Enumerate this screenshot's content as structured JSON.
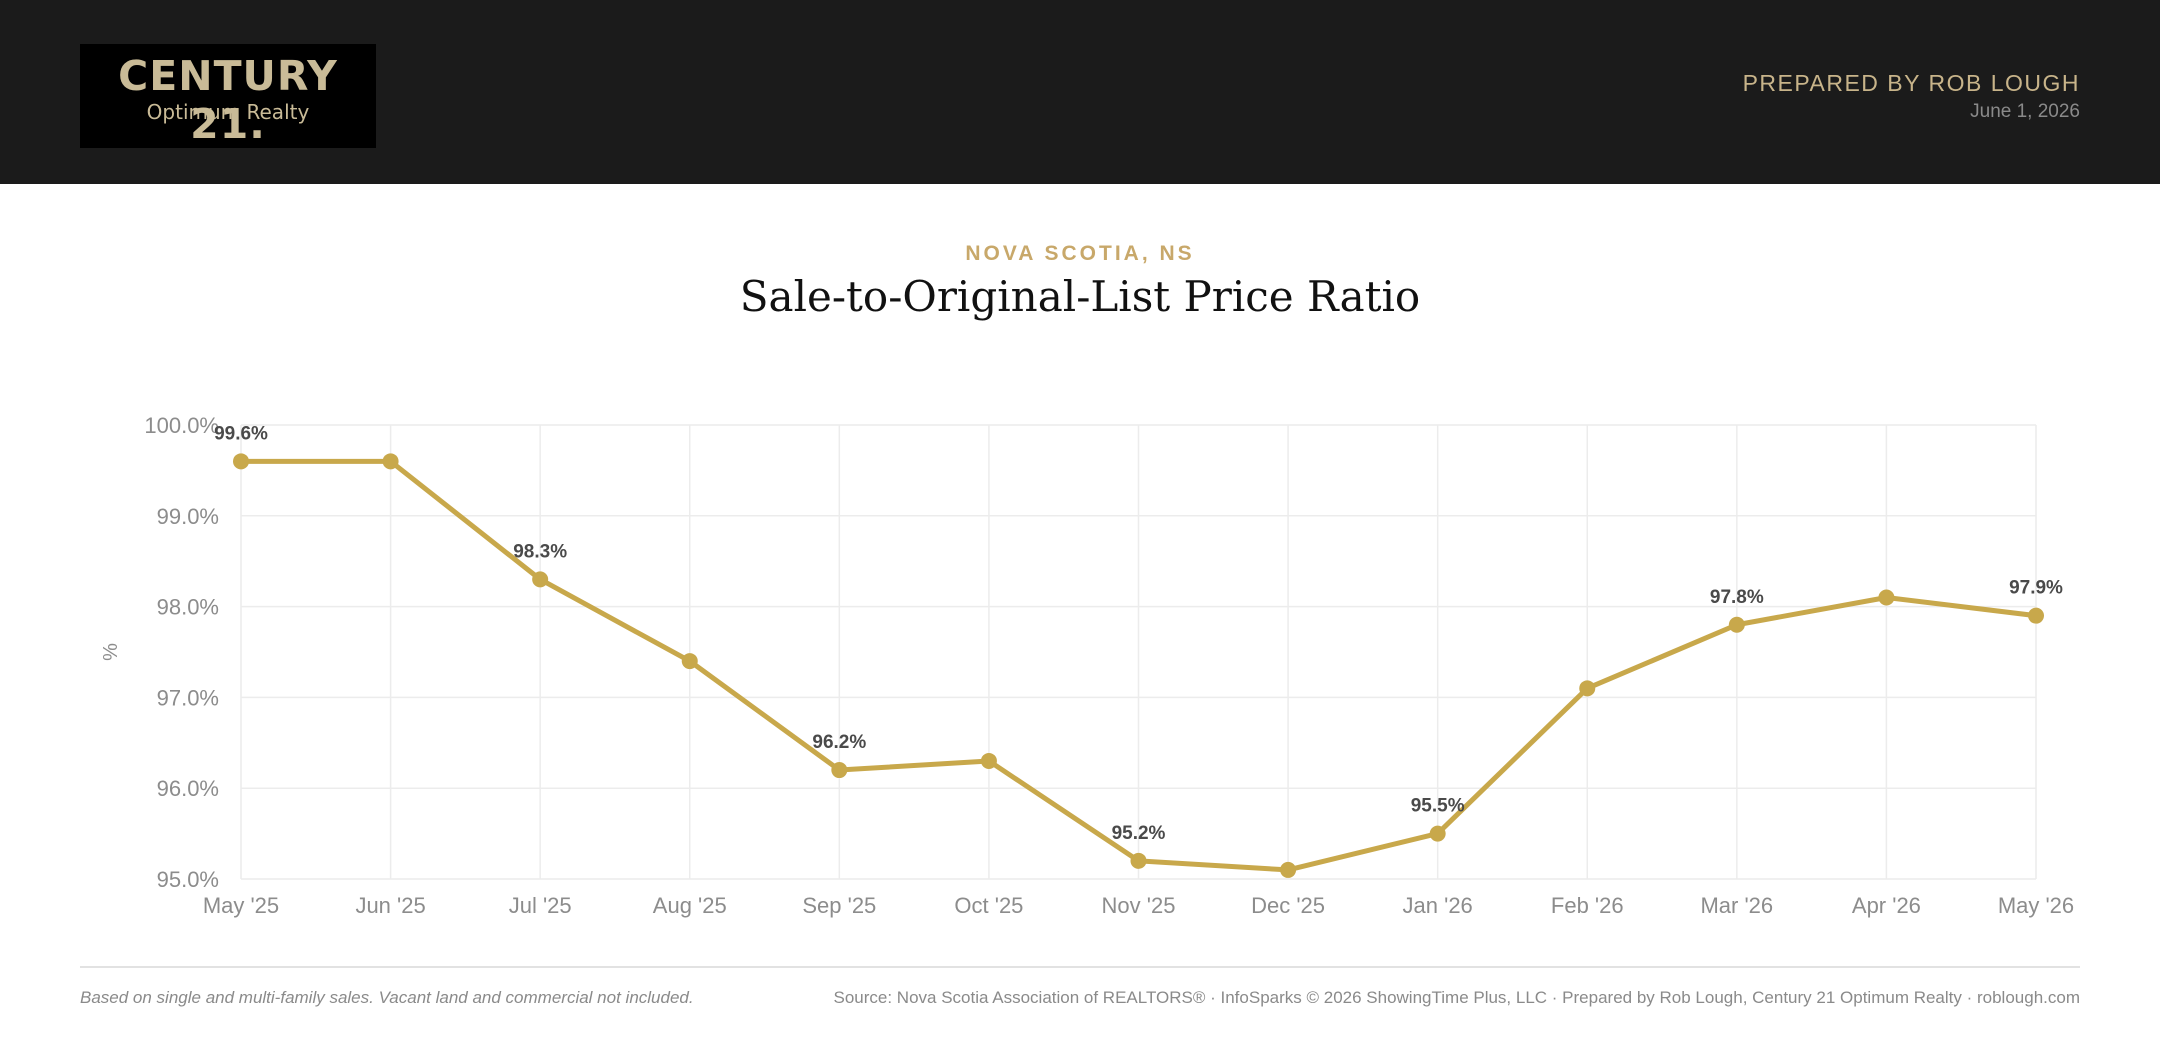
{
  "header": {
    "logo_main": "CENTURY 21.",
    "logo_sub": "Optimum Realty",
    "prepared_by": "PREPARED BY ROB LOUGH",
    "date": "June 1, 2026"
  },
  "colors": {
    "header_bg": "#1b1b1b",
    "accent_gold": "#c8a84b",
    "line": "#c8a84b",
    "grid": "#ececec"
  },
  "chart_data": {
    "type": "line",
    "region": "NOVA SCOTIA, NS",
    "title": "Sale-to-Original-List Price Ratio",
    "ylabel": "%",
    "xlabel": "",
    "ylim": [
      95.0,
      100.0
    ],
    "y_ticks": [
      "100.0%",
      "99.0%",
      "98.0%",
      "97.0%",
      "96.0%",
      "95.0%"
    ],
    "categories": [
      "May '25",
      "Jun '25",
      "Jul '25",
      "Aug '25",
      "Sep '25",
      "Oct '25",
      "Nov '25",
      "Dec '25",
      "Jan '26",
      "Feb '26",
      "Mar '26",
      "Apr '26",
      "May '26"
    ],
    "series": [
      {
        "values": [
          99.6,
          99.6,
          98.3,
          97.4,
          96.2,
          96.3,
          95.2,
          95.1,
          95.5,
          97.1,
          97.8,
          98.1,
          97.9
        ]
      }
    ],
    "data_labels": [
      {
        "index": 0,
        "text": "99.6%"
      },
      {
        "index": 2,
        "text": "98.3%"
      },
      {
        "index": 4,
        "text": "96.2%"
      },
      {
        "index": 6,
        "text": "95.2%"
      },
      {
        "index": 8,
        "text": "95.5%"
      },
      {
        "index": 10,
        "text": "97.8%"
      },
      {
        "index": 12,
        "text": "97.9%"
      }
    ],
    "grid": true,
    "legend": "none"
  },
  "footer": {
    "note": "Based on single and multi-family sales. Vacant land and commercial not included.",
    "source": "Source: Nova Scotia Association of REALTORS® · InfoSparks © 2026 ShowingTime Plus, LLC · Prepared by Rob Lough, Century 21 Optimum Realty · roblough.com"
  }
}
